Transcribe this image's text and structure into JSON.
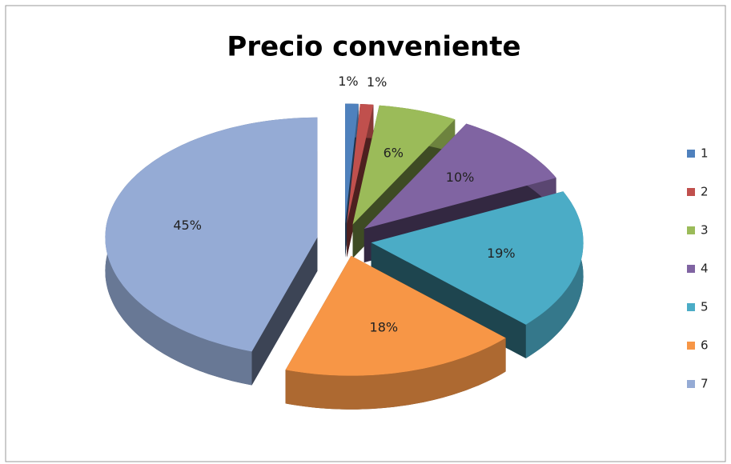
{
  "chart_data": {
    "type": "pie",
    "title": "Precio conveniente",
    "categories": [
      "1",
      "2",
      "3",
      "4",
      "5",
      "6",
      "7"
    ],
    "values": [
      1,
      1,
      6,
      10,
      19,
      18,
      45
    ],
    "value_labels": [
      "1%",
      "1%",
      "6%",
      "10%",
      "19%",
      "18%",
      "45%"
    ],
    "colors": [
      "#4F81BD",
      "#C0504D",
      "#9BBB59",
      "#8064A2",
      "#4BACC6",
      "#F79646",
      "#95ABD5"
    ],
    "legend": "right"
  }
}
